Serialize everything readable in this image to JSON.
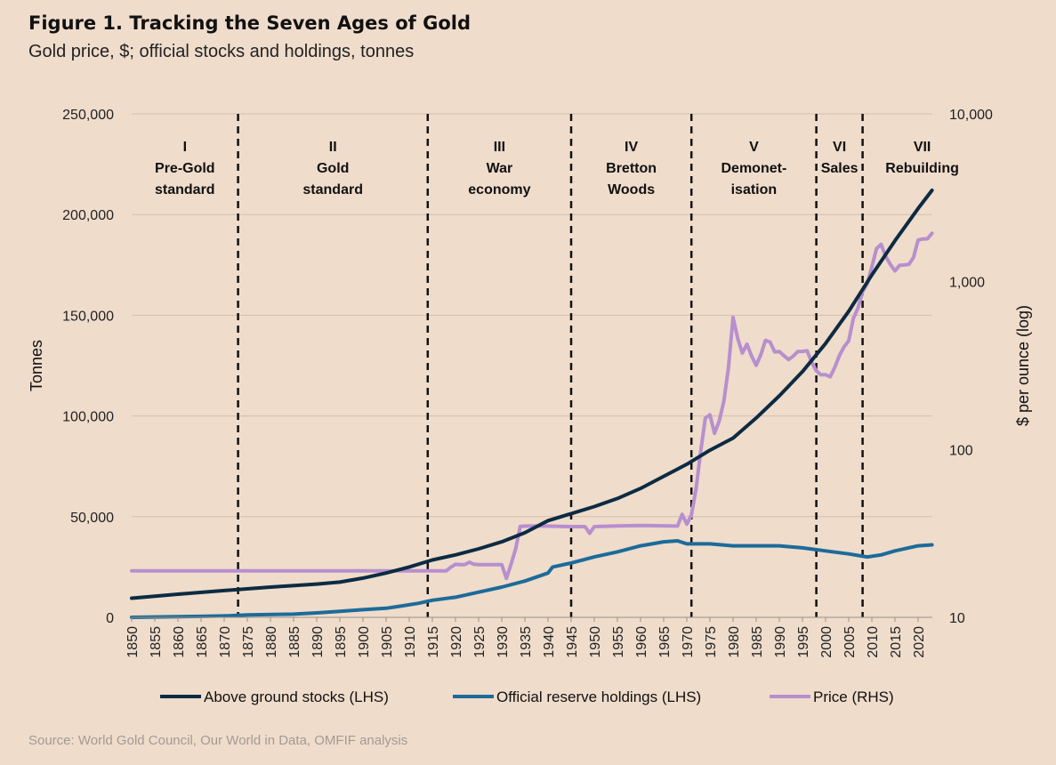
{
  "title": "Figure 1. Tracking the Seven Ages of Gold",
  "subtitle": "Gold price, $; official stocks and holdings, tonnes",
  "source": "Source: World Gold Council, Our World in Data, OMFIF analysis",
  "colors": {
    "background": "#efdccb",
    "stocks": "#0c2b42",
    "reserves": "#1c6b9a",
    "price": "#b78fce",
    "grid": "#d3bfac",
    "divider": "#111111"
  },
  "chart_data": {
    "type": "line",
    "ylabel": "Tonnes",
    "y2label": "$ per ounce (log)",
    "xlim": [
      1850,
      2023
    ],
    "ylim": [
      0,
      250000
    ],
    "y2lim": [
      10,
      10000
    ],
    "y2_scale": "log",
    "grid": "horizontal",
    "legend_position": "bottom",
    "x_ticks": [
      "1850",
      "1855",
      "1860",
      "1865",
      "1870",
      "1875",
      "1880",
      "1885",
      "1890",
      "1895",
      "1900",
      "1905",
      "1910",
      "1915",
      "1920",
      "1925",
      "1930",
      "1935",
      "1940",
      "1945",
      "1950",
      "1955",
      "1960",
      "1965",
      "1970",
      "1975",
      "1980",
      "1985",
      "1990",
      "1995",
      "2000",
      "2005",
      "2010",
      "2015",
      "2020"
    ],
    "y_ticks": [
      "0",
      "50,000",
      "100,000",
      "150,000",
      "200,000",
      "250,000"
    ],
    "y2_ticks": [
      "10",
      "100",
      "1,000",
      "10,000"
    ],
    "eras": [
      {
        "numeral": "I",
        "line1": "Pre-Gold",
        "line2": "standard",
        "start": 1850,
        "end": 1873
      },
      {
        "numeral": "II",
        "line1": "Gold",
        "line2": "standard",
        "start": 1873,
        "end": 1914
      },
      {
        "numeral": "III",
        "line1": "War",
        "line2": "economy",
        "start": 1914,
        "end": 1945
      },
      {
        "numeral": "IV",
        "line1": "Bretton",
        "line2": "Woods",
        "start": 1945,
        "end": 1971
      },
      {
        "numeral": "V",
        "line1": "Demonet-",
        "line2": "isation",
        "start": 1971,
        "end": 1998
      },
      {
        "numeral": "VI",
        "line1": "Sales",
        "line2": "",
        "start": 1998,
        "end": 2008
      },
      {
        "numeral": "VII",
        "line1": "Rebuilding",
        "line2": "",
        "start": 2008,
        "end": 2023
      }
    ],
    "dividers": [
      1873,
      1914,
      1945,
      1971,
      1998,
      2008
    ],
    "series": [
      {
        "name": "Above ground stocks (LHS)",
        "axis": "left",
        "points": [
          [
            1850,
            9500
          ],
          [
            1860,
            11500
          ],
          [
            1870,
            13300
          ],
          [
            1880,
            15000
          ],
          [
            1890,
            16500
          ],
          [
            1895,
            17500
          ],
          [
            1900,
            19500
          ],
          [
            1905,
            22000
          ],
          [
            1910,
            25000
          ],
          [
            1915,
            28500
          ],
          [
            1920,
            31000
          ],
          [
            1925,
            34000
          ],
          [
            1930,
            37500
          ],
          [
            1935,
            42000
          ],
          [
            1940,
            48000
          ],
          [
            1945,
            51500
          ],
          [
            1950,
            55000
          ],
          [
            1955,
            59000
          ],
          [
            1960,
            64000
          ],
          [
            1965,
            70000
          ],
          [
            1970,
            76000
          ],
          [
            1975,
            83000
          ],
          [
            1980,
            89000
          ],
          [
            1985,
            99000
          ],
          [
            1990,
            110000
          ],
          [
            1995,
            122000
          ],
          [
            2000,
            136000
          ],
          [
            2005,
            152000
          ],
          [
            2010,
            170000
          ],
          [
            2015,
            187000
          ],
          [
            2020,
            203000
          ],
          [
            2023,
            212000
          ]
        ]
      },
      {
        "name": "Official reserve holdings (LHS)",
        "axis": "left",
        "points": [
          [
            1850,
            0
          ],
          [
            1860,
            300
          ],
          [
            1865,
            500
          ],
          [
            1870,
            700
          ],
          [
            1872,
            900
          ],
          [
            1875,
            1200
          ],
          [
            1885,
            1600
          ],
          [
            1890,
            2200
          ],
          [
            1895,
            3000
          ],
          [
            1900,
            3800
          ],
          [
            1905,
            4500
          ],
          [
            1908,
            5500
          ],
          [
            1912,
            7000
          ],
          [
            1915,
            8500
          ],
          [
            1920,
            10000
          ],
          [
            1925,
            12500
          ],
          [
            1930,
            15000
          ],
          [
            1935,
            18000
          ],
          [
            1940,
            22000
          ],
          [
            1941,
            25000
          ],
          [
            1945,
            27000
          ],
          [
            1950,
            30000
          ],
          [
            1955,
            32500
          ],
          [
            1960,
            35500
          ],
          [
            1965,
            37500
          ],
          [
            1968,
            38000
          ],
          [
            1970,
            36500
          ],
          [
            1975,
            36500
          ],
          [
            1980,
            35500
          ],
          [
            1985,
            35500
          ],
          [
            1990,
            35500
          ],
          [
            1995,
            34500
          ],
          [
            2000,
            33000
          ],
          [
            2005,
            31500
          ],
          [
            2009,
            30000
          ],
          [
            2012,
            31000
          ],
          [
            2015,
            33000
          ],
          [
            2020,
            35500
          ],
          [
            2023,
            36000
          ]
        ]
      },
      {
        "name": "Price (RHS)",
        "axis": "right",
        "points": [
          [
            1850,
            18.9
          ],
          [
            1870,
            18.9
          ],
          [
            1900,
            18.9
          ],
          [
            1914,
            18.9
          ],
          [
            1918,
            18.9
          ],
          [
            1919,
            19.9
          ],
          [
            1920,
            20.7
          ],
          [
            1921,
            20.6
          ],
          [
            1922,
            20.6
          ],
          [
            1923,
            21.3
          ],
          [
            1924,
            20.7
          ],
          [
            1925,
            20.6
          ],
          [
            1930,
            20.6
          ],
          [
            1931,
            17.06
          ],
          [
            1932,
            20.69
          ],
          [
            1933,
            25.56
          ],
          [
            1934,
            34.84
          ],
          [
            1935,
            35.0
          ],
          [
            1940,
            35.0
          ],
          [
            1945,
            34.71
          ],
          [
            1948,
            34.71
          ],
          [
            1949,
            31.69
          ],
          [
            1950,
            34.72
          ],
          [
            1955,
            35.03
          ],
          [
            1960,
            35.27
          ],
          [
            1965,
            35.12
          ],
          [
            1968,
            35.0
          ],
          [
            1969,
            41.1
          ],
          [
            1970,
            35.9
          ],
          [
            1971,
            40.8
          ],
          [
            1972,
            58.2
          ],
          [
            1973,
            97.3
          ],
          [
            1974,
            154.0
          ],
          [
            1975,
            160.9
          ],
          [
            1976,
            124.8
          ],
          [
            1977,
            147.7
          ],
          [
            1978,
            193.2
          ],
          [
            1979,
            306.7
          ],
          [
            1980,
            612.6
          ],
          [
            1981,
            460.0
          ],
          [
            1982,
            375.8
          ],
          [
            1983,
            424.0
          ],
          [
            1984,
            360.7
          ],
          [
            1985,
            317.3
          ],
          [
            1986,
            367.5
          ],
          [
            1987,
            446.5
          ],
          [
            1988,
            437.0
          ],
          [
            1989,
            381.4
          ],
          [
            1990,
            383.5
          ],
          [
            1991,
            362.1
          ],
          [
            1992,
            343.8
          ],
          [
            1993,
            359.8
          ],
          [
            1994,
            384.0
          ],
          [
            1995,
            383.8
          ],
          [
            1996,
            387.8
          ],
          [
            1997,
            331.0
          ],
          [
            1998,
            294.2
          ],
          [
            1999,
            278.9
          ],
          [
            2000,
            279.1
          ],
          [
            2001,
            271.0
          ],
          [
            2002,
            309.7
          ],
          [
            2003,
            363.4
          ],
          [
            2004,
            409.7
          ],
          [
            2005,
            444.7
          ],
          [
            2006,
            603.5
          ],
          [
            2007,
            695.4
          ],
          [
            2008,
            871.9
          ],
          [
            2009,
            972.4
          ],
          [
            2010,
            1224.5
          ],
          [
            2011,
            1571.5
          ],
          [
            2012,
            1668.9
          ],
          [
            2013,
            1411.2
          ],
          [
            2014,
            1266.4
          ],
          [
            2015,
            1160.1
          ],
          [
            2016,
            1250.7
          ],
          [
            2017,
            1257.1
          ],
          [
            2018,
            1268.5
          ],
          [
            2019,
            1392.6
          ],
          [
            2020,
            1769.6
          ],
          [
            2021,
            1798.6
          ],
          [
            2022,
            1800.1
          ],
          [
            2023,
            1940.5
          ]
        ]
      }
    ]
  }
}
